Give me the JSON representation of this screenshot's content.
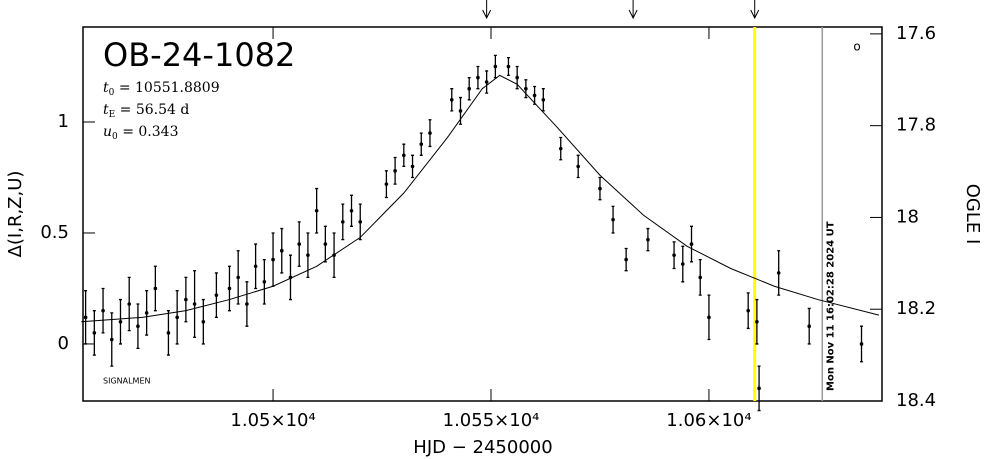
{
  "chart_data": {
    "type": "errorbar",
    "title": "OB-24-1082",
    "params": [
      {
        "symbol": "t",
        "sub": "0",
        "text": " = 10551.8809"
      },
      {
        "symbol": "t",
        "sub": "E",
        "text": " = 56.54 d"
      },
      {
        "symbol": "u",
        "sub": "0",
        "text": " = 0.343"
      }
    ],
    "xlabel": "HJD − 2450000",
    "ylabel": "Δ(I,R,Z,U)",
    "y2label": "OGLE I",
    "credit": "SIGNALMEN",
    "timestamp": "Mon Nov 11 16:02:28 2024 UT",
    "corner_mark": "o",
    "xlim": [
      10456.4,
      10639.7
    ],
    "xticks": [
      {
        "value": 10500,
        "label": "1.05×10⁴"
      },
      {
        "value": 10550,
        "label": "1.055×10⁴"
      },
      {
        "value": 10600,
        "label": "1.06×10⁴"
      }
    ],
    "ylim": [
      -0.257,
      1.428
    ],
    "yticks": [
      0,
      0.5,
      1
    ],
    "y2lim": [
      18.4,
      17.585
    ],
    "y2ticks": [
      17.6,
      17.8,
      18,
      18.2,
      18.4
    ],
    "arrows": [
      10549,
      10582.6,
      10610.5
    ],
    "highlight_x": 10610.5,
    "highlight_color": "#ffff00",
    "now_x": 10626,
    "now_color": "#999999",
    "color": "#000000",
    "x": [
      10457,
      10459,
      10461,
      10463,
      10465,
      10467,
      10469,
      10471,
      10473,
      10476,
      10478,
      10480,
      10482,
      10484,
      10487,
      10490,
      10492,
      10494,
      10496,
      10498,
      10500,
      10502,
      10504,
      10506,
      10508,
      10510,
      10512,
      10514,
      10516,
      10518,
      10520,
      10526,
      10528,
      10530,
      10532,
      10534,
      10536,
      10541,
      10543,
      10545,
      10547,
      10549,
      10551,
      10554,
      10556,
      10558,
      10560,
      10562,
      10566,
      10570,
      10575,
      10578,
      10581,
      10586,
      10592,
      10594,
      10596,
      10598,
      10600,
      10609,
      10611,
      10611.5,
      10616,
      10623,
      10635
    ],
    "values": [
      0.12,
      0.05,
      0.15,
      0.02,
      0.1,
      0.18,
      0.08,
      0.14,
      0.25,
      0.05,
      0.12,
      0.2,
      0.18,
      0.1,
      0.22,
      0.25,
      0.3,
      0.18,
      0.35,
      0.28,
      0.38,
      0.42,
      0.3,
      0.45,
      0.4,
      0.6,
      0.45,
      0.4,
      0.55,
      0.6,
      0.55,
      0.72,
      0.78,
      0.85,
      0.8,
      0.9,
      0.95,
      1.1,
      1.05,
      1.15,
      1.2,
      1.18,
      1.25,
      1.25,
      1.2,
      1.15,
      1.12,
      1.1,
      0.88,
      0.8,
      0.7,
      0.56,
      0.38,
      0.47,
      0.4,
      0.36,
      0.45,
      0.3,
      0.12,
      0.15,
      0.1,
      -0.2,
      0.32,
      0.08,
      0.0
    ],
    "errors": [
      0.12,
      0.1,
      0.1,
      0.12,
      0.1,
      0.12,
      0.1,
      0.1,
      0.1,
      0.1,
      0.12,
      0.1,
      0.15,
      0.1,
      0.1,
      0.1,
      0.12,
      0.1,
      0.1,
      0.1,
      0.12,
      0.1,
      0.1,
      0.1,
      0.1,
      0.1,
      0.08,
      0.1,
      0.08,
      0.07,
      0.08,
      0.06,
      0.06,
      0.05,
      0.05,
      0.05,
      0.06,
      0.05,
      0.06,
      0.05,
      0.05,
      0.05,
      0.05,
      0.04,
      0.05,
      0.04,
      0.04,
      0.05,
      0.05,
      0.05,
      0.05,
      0.06,
      0.05,
      0.05,
      0.06,
      0.08,
      0.08,
      0.08,
      0.1,
      0.08,
      0.1,
      0.1,
      0.1,
      0.08,
      0.08
    ],
    "model": {
      "x": [
        10456,
        10470,
        10480,
        10490,
        10500,
        10510,
        10520,
        10530,
        10540,
        10548,
        10552,
        10556,
        10565,
        10575,
        10585,
        10595,
        10605,
        10615,
        10625,
        10639
      ],
      "values": [
        0.1,
        0.12,
        0.15,
        0.2,
        0.26,
        0.35,
        0.48,
        0.68,
        0.93,
        1.15,
        1.21,
        1.17,
        0.98,
        0.76,
        0.58,
        0.44,
        0.34,
        0.26,
        0.2,
        0.13
      ]
    }
  }
}
